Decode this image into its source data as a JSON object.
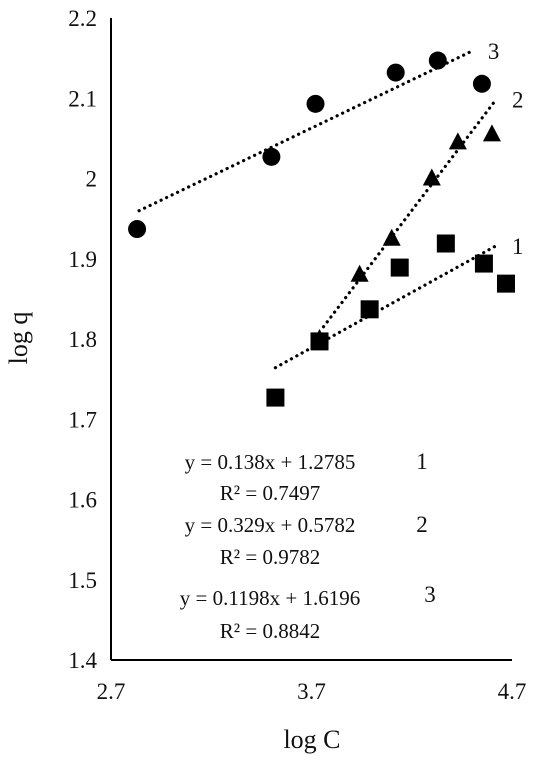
{
  "chart_data": {
    "type": "scatter",
    "title": "",
    "xlabel": "log C",
    "ylabel": "log q",
    "xlim": [
      2.7,
      4.7
    ],
    "ylim": [
      1.4,
      2.2
    ],
    "x_ticks": [
      2.7,
      3.7,
      4.7
    ],
    "x_tick_labels": [
      "2.7",
      "3.7",
      "4.7"
    ],
    "y_ticks": [
      1.4,
      1.5,
      1.6,
      1.7,
      1.8,
      1.9,
      2.0,
      2.1,
      2.2
    ],
    "y_tick_labels": [
      "1.4",
      "1.5",
      "1.6",
      "1.7",
      "1.8",
      "1.9",
      "2",
      "2.1",
      "2.2"
    ],
    "grid": false,
    "series": [
      {
        "name": "1",
        "marker": "square",
        "x": [
          3.52,
          3.74,
          3.99,
          4.14,
          4.37,
          4.56,
          4.67
        ],
        "y": [
          1.727,
          1.797,
          1.837,
          1.889,
          1.919,
          1.894,
          1.869
        ],
        "trend": {
          "slope": 0.138,
          "intercept": 1.2785,
          "x_range": [
            3.52,
            4.62
          ]
        }
      },
      {
        "name": "2",
        "marker": "triangle",
        "x": [
          3.74,
          3.94,
          4.1,
          4.3,
          4.43,
          4.6
        ],
        "y": [
          1.8,
          1.88,
          1.925,
          2.0,
          2.045,
          2.055
        ],
        "trend": {
          "slope": 0.329,
          "intercept": 0.5782,
          "x_range": [
            3.76,
            4.62
          ]
        }
      },
      {
        "name": "3",
        "marker": "circle",
        "x": [
          2.83,
          3.5,
          3.72,
          4.12,
          4.33,
          4.55
        ],
        "y": [
          1.937,
          2.027,
          2.093,
          2.132,
          2.147,
          2.118
        ],
        "trend": {
          "slope": 0.1198,
          "intercept": 1.6196,
          "x_range": [
            2.84,
            4.5
          ]
        }
      }
    ],
    "annotations": [
      {
        "equation": "y = 0.138x + 1.2785",
        "r2": "R² = 0.7497",
        "series": "1"
      },
      {
        "equation": "y = 0.329x + 0.5782",
        "r2": "R² = 0.9782",
        "series": "2"
      },
      {
        "equation": "y = 0.1198x + 1.6196",
        "r2": "R² = 0.8842",
        "series": "3"
      }
    ],
    "colors": {
      "marker": "#000000",
      "axis": "#000000",
      "text": "#111111"
    }
  }
}
